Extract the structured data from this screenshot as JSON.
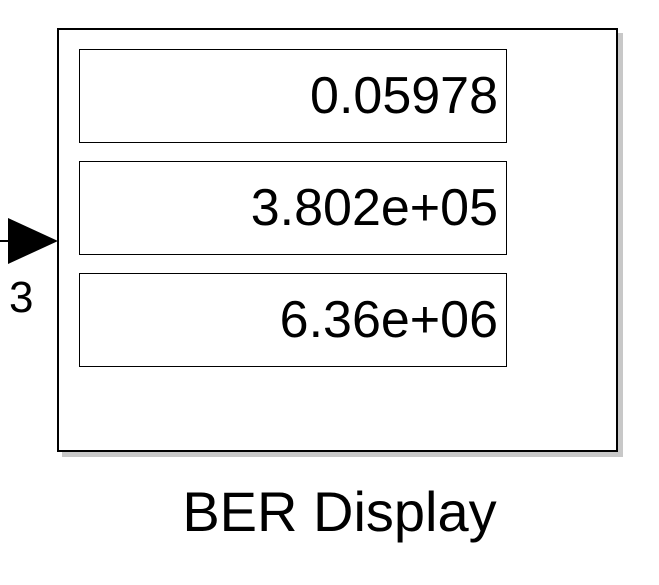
{
  "input_port": {
    "number": "3"
  },
  "block": {
    "label": "BER Display",
    "values": [
      "0.05978",
      "3.802e+05",
      "6.36e+06"
    ]
  }
}
